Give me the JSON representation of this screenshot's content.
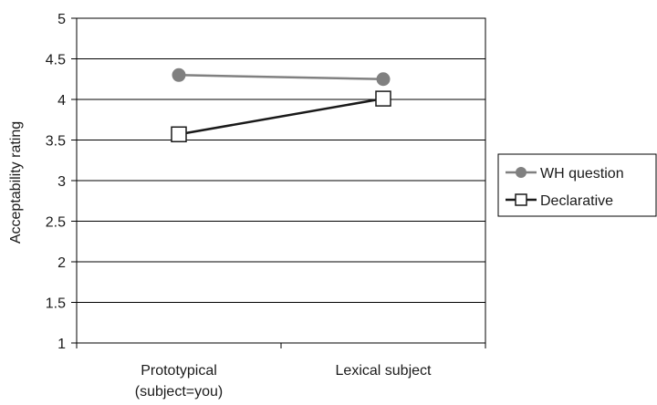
{
  "chart_data": {
    "type": "line",
    "title": "",
    "xlabel": "",
    "ylabel": "Acceptability rating",
    "ylim": [
      1,
      5
    ],
    "yticks": [
      1,
      1.5,
      2,
      2.5,
      3,
      3.5,
      4,
      4.5,
      5
    ],
    "ytick_labels": [
      "1",
      "1.5",
      "2",
      "2.5",
      "3",
      "3.5",
      "4",
      "4.5",
      "5"
    ],
    "categories": [
      [
        "Prototypical",
        "(subject=you)"
      ],
      [
        "Lexical subject"
      ]
    ],
    "grid": "horizontal",
    "legend_position": "right",
    "series": [
      {
        "name": "WH question",
        "values": [
          4.3,
          4.25
        ],
        "color": "#808080",
        "marker": "circle"
      },
      {
        "name": "Declarative",
        "values": [
          3.57,
          4.01
        ],
        "color": "#1a1a1a",
        "marker": "open-square"
      }
    ]
  }
}
